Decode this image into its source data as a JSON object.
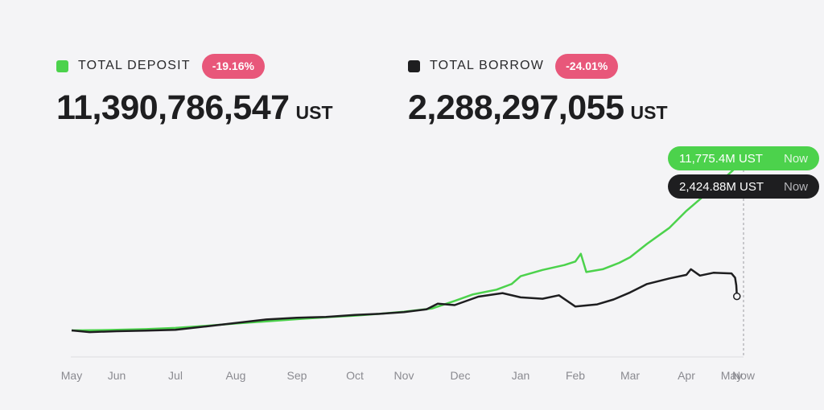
{
  "summary": {
    "deposit": {
      "label": "TOTAL DEPOSIT",
      "change": "-19.16%",
      "value": "11,390,786,547",
      "unit": "UST",
      "color": "#4cd24c"
    },
    "borrow": {
      "label": "TOTAL BORROW",
      "change": "-24.01%",
      "value": "2,288,297,055",
      "unit": "UST",
      "color": "#1e1e20"
    }
  },
  "tooltips": {
    "deposit": {
      "value": "11,775.4M UST",
      "when": "Now"
    },
    "borrow": {
      "value": "2,424.88M UST",
      "when": "Now"
    }
  },
  "colors": {
    "badge": "#e8577a",
    "background": "#f4f4f6",
    "axis": "#dcdce0"
  },
  "chart_data": {
    "type": "line",
    "title": "",
    "xlabel": "",
    "ylabel": "",
    "unit": "M UST",
    "x_ticks": [
      "May",
      "Jun",
      "Jul",
      "Aug",
      "Sep",
      "Oct",
      "Nov",
      "Dec",
      "Jan",
      "Feb",
      "Mar",
      "Apr",
      "May",
      "Now"
    ],
    "ylim": [
      0,
      12000
    ],
    "grid": false,
    "legend": "top-left",
    "series": [
      {
        "name": "TOTAL DEPOSIT",
        "color": "#4cd24c",
        "points": [
          [
            0,
            0
          ],
          [
            0.5,
            10
          ],
          [
            1,
            40
          ],
          [
            1.5,
            90
          ],
          [
            2,
            180
          ],
          [
            2.5,
            320
          ],
          [
            3,
            490
          ],
          [
            3.5,
            640
          ],
          [
            4,
            800
          ],
          [
            4.5,
            940
          ],
          [
            5,
            1050
          ],
          [
            5.5,
            1180
          ],
          [
            6,
            1330
          ],
          [
            6.5,
            1560
          ],
          [
            6.9,
            2100
          ],
          [
            7.2,
            2550
          ],
          [
            7.6,
            2900
          ],
          [
            7.85,
            3300
          ],
          [
            8.0,
            3850
          ],
          [
            8.4,
            4300
          ],
          [
            8.8,
            4650
          ],
          [
            9.0,
            4900
          ],
          [
            9.1,
            5450
          ],
          [
            9.2,
            4150
          ],
          [
            9.5,
            4350
          ],
          [
            9.8,
            4800
          ],
          [
            10.0,
            5200
          ],
          [
            10.3,
            6150
          ],
          [
            10.7,
            7300
          ],
          [
            11.0,
            8500
          ],
          [
            11.4,
            9600
          ],
          [
            11.8,
            10700
          ],
          [
            12.2,
            11450
          ],
          [
            12.45,
            11775.4
          ]
        ]
      },
      {
        "name": "TOTAL BORROW",
        "color": "#1e1e20",
        "points": [
          [
            0,
            0
          ],
          [
            0.4,
            -120
          ],
          [
            1,
            -60
          ],
          [
            1.5,
            -20
          ],
          [
            2,
            40
          ],
          [
            2.5,
            280
          ],
          [
            3,
            530
          ],
          [
            3.5,
            780
          ],
          [
            4,
            900
          ],
          [
            4.5,
            960
          ],
          [
            5,
            1100
          ],
          [
            5.5,
            1180
          ],
          [
            6,
            1300
          ],
          [
            6.4,
            1500
          ],
          [
            6.6,
            1900
          ],
          [
            6.9,
            1800
          ],
          [
            7.3,
            2400
          ],
          [
            7.7,
            2650
          ],
          [
            8.0,
            2350
          ],
          [
            8.4,
            2250
          ],
          [
            8.7,
            2500
          ],
          [
            9.0,
            1700
          ],
          [
            9.4,
            1850
          ],
          [
            9.7,
            2200
          ],
          [
            10.0,
            2700
          ],
          [
            10.3,
            3300
          ],
          [
            10.7,
            3700
          ],
          [
            11.0,
            3950
          ],
          [
            11.1,
            4350
          ],
          [
            11.3,
            3900
          ],
          [
            11.6,
            4100
          ],
          [
            12.0,
            4050
          ],
          [
            12.3,
            3750
          ],
          [
            12.4,
            3200
          ],
          [
            12.45,
            2424.88
          ]
        ]
      }
    ]
  }
}
